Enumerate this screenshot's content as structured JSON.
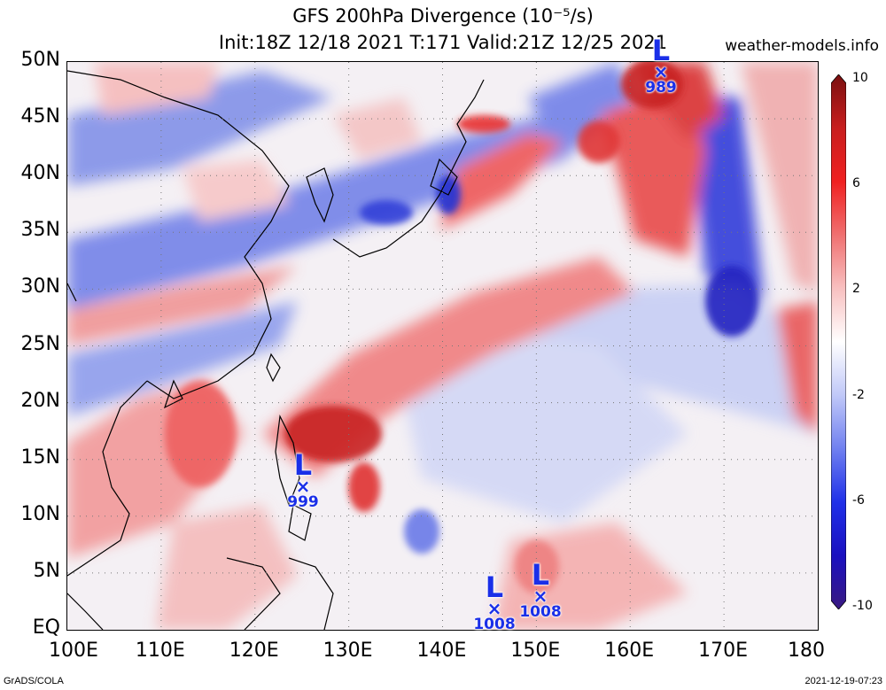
{
  "title": {
    "line1": "GFS 200hPa Divergence (10⁻⁵/s)",
    "line2": "Init:18Z 12/18 2021 T:171 Valid:21Z 12/25 2021"
  },
  "site": "weather-models.info",
  "lat_labels": [
    "50N",
    "45N",
    "40N",
    "35N",
    "30N",
    "25N",
    "20N",
    "15N",
    "10N",
    "5N",
    "EQ"
  ],
  "lon_labels": [
    "100E",
    "110E",
    "120E",
    "130E",
    "140E",
    "150E",
    "160E",
    "170E",
    "180"
  ],
  "colorbar": {
    "labels": [
      "10",
      "6",
      "2",
      "-2",
      "-6",
      "-10"
    ],
    "colors": [
      "#7a1010",
      "#c81e1e",
      "#f02020",
      "#f07070",
      "#f8c0c0",
      "#ffffff",
      "#c0c8f8",
      "#7080f0",
      "#2030e8",
      "#1a10c0",
      "#3a1a80"
    ]
  },
  "lows": [
    {
      "name": "low-luzon",
      "label": "L",
      "marker": "×",
      "value": "999"
    },
    {
      "name": "low-north",
      "label": "L",
      "marker": "×",
      "value": "989"
    },
    {
      "name": "low-east-1",
      "label": "L",
      "marker": "×",
      "value": "1008"
    },
    {
      "name": "low-east-2",
      "label": "L",
      "marker": "×",
      "value": "1008"
    }
  ],
  "footer": {
    "left": "GrADS/COLA",
    "right": "2021-12-19-07:23"
  },
  "field_colors": {
    "red": "#e83030",
    "darkred": "#b01818",
    "blue": "#3040e0",
    "darkblue": "#1a18b0",
    "pink": "#f5a0a0",
    "lightblue": "#a8b4f0"
  }
}
